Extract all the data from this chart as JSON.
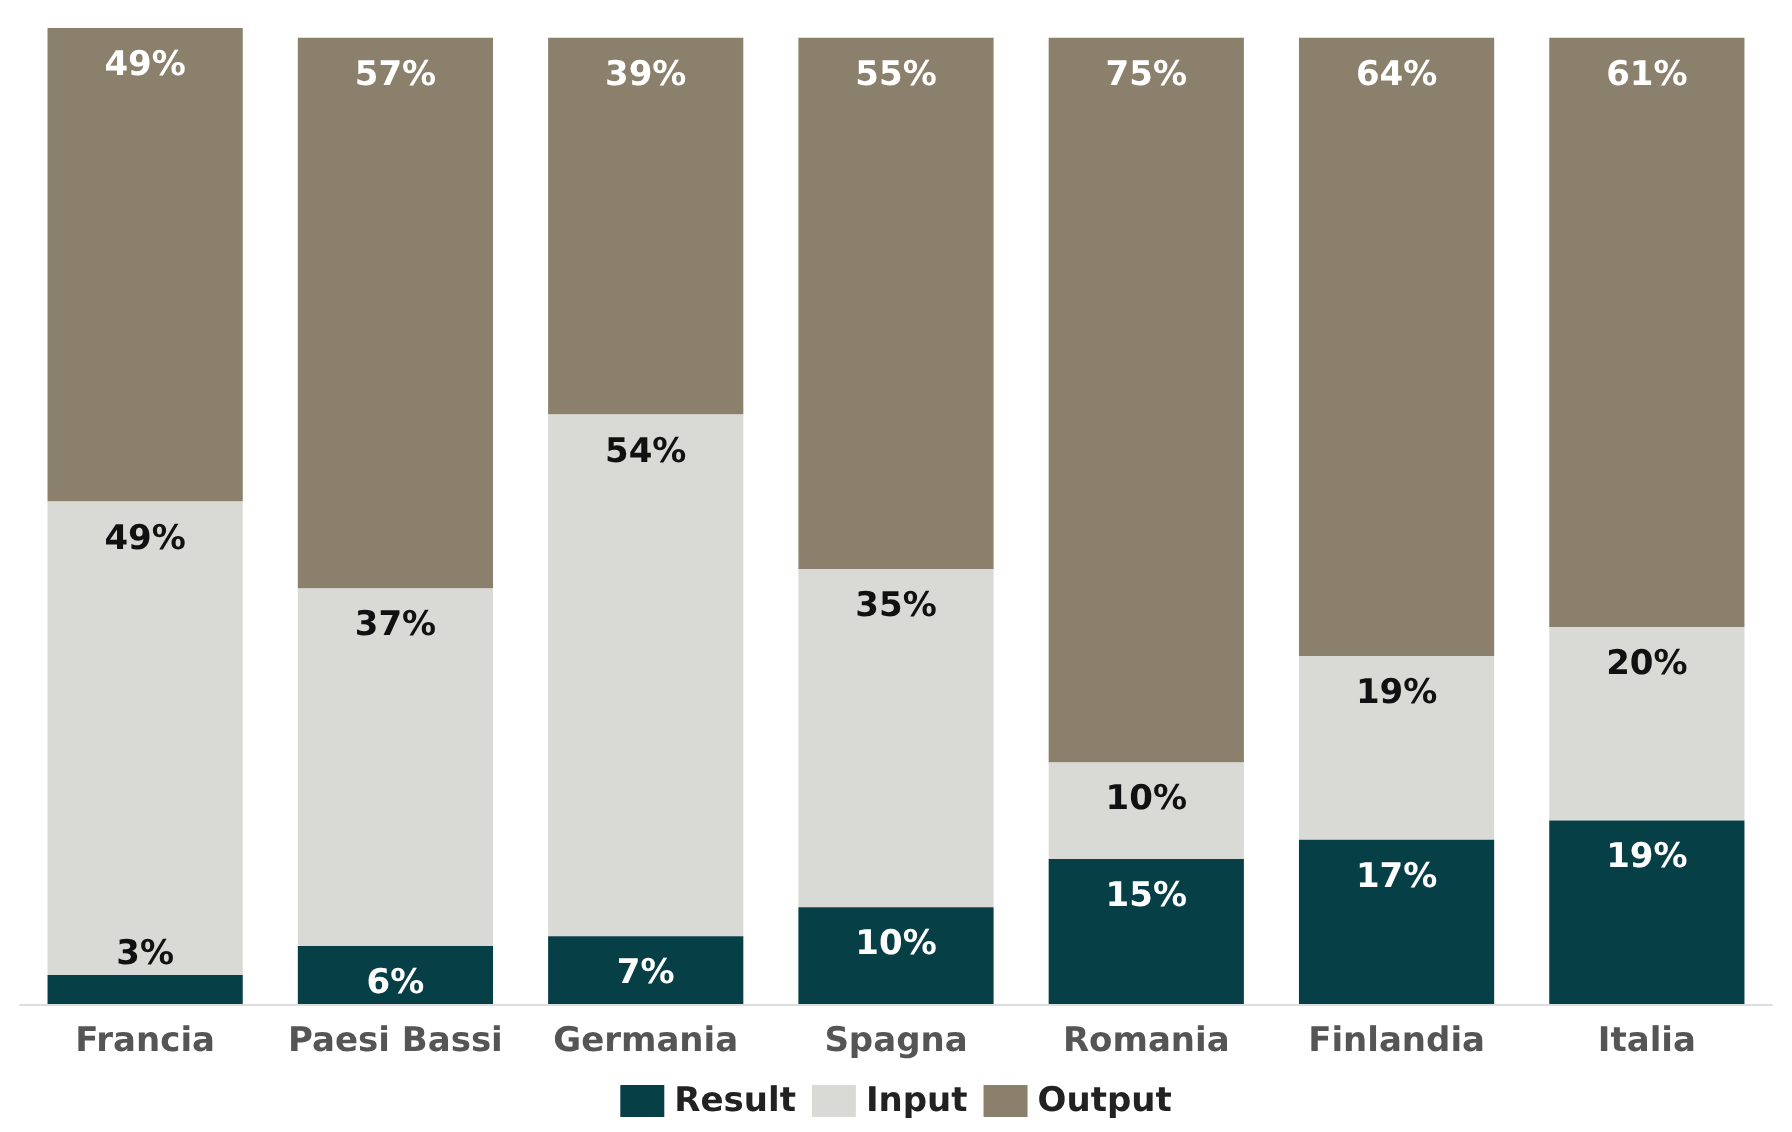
{
  "chart_data": {
    "type": "bar",
    "stacked": true,
    "categories": [
      "Francia",
      "Paesi Bassi",
      "Germania",
      "Spagna",
      "Romania",
      "Finlandia",
      "Italia"
    ],
    "series": [
      {
        "name": "Result",
        "color": "#073f47",
        "values": [
          3,
          6,
          7,
          10,
          15,
          17,
          19
        ],
        "value_labels": [
          "3%",
          "6%",
          "7%",
          "10%",
          "15%",
          "17%",
          "19%"
        ]
      },
      {
        "name": "Input",
        "color": "#d9d9d5",
        "values": [
          49,
          37,
          54,
          35,
          10,
          19,
          20
        ],
        "value_labels": [
          "49%",
          "37%",
          "54%",
          "35%",
          "10%",
          "19%",
          "20%"
        ]
      },
      {
        "name": "Output",
        "color": "#8b806b",
        "values": [
          49,
          57,
          39,
          55,
          75,
          64,
          61
        ],
        "value_labels": [
          "49%",
          "57%",
          "39%",
          "55%",
          "75%",
          "64%",
          "61%"
        ]
      }
    ],
    "legend": "bottom"
  }
}
